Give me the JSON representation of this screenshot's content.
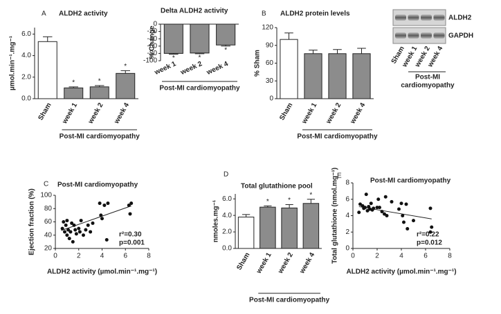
{
  "chart_data": [
    {
      "type": "bar",
      "panel": "A",
      "title": "ALDH2 activity",
      "y_label": "µmol.min⁻¹.mg⁻¹",
      "categories": [
        "Sham",
        "week 1",
        "week 2",
        "week 4"
      ],
      "values": [
        5.3,
        1.0,
        1.1,
        2.35
      ],
      "errors": [
        0.45,
        0.1,
        0.12,
        0.25
      ],
      "colors": [
        "#ffffff",
        "#8c8c8c",
        "#8c8c8c",
        "#8c8c8c"
      ],
      "significance": [
        null,
        "*",
        "*",
        "*"
      ],
      "group_label": "Post-MI cardiomyopathy",
      "ylim": [
        0,
        6.6
      ],
      "yticks": [
        {
          "value": 0,
          "label": "0.0"
        },
        {
          "value": 2,
          "label": "2.0"
        },
        {
          "value": 4,
          "label": "4.0"
        },
        {
          "value": 6,
          "label": "6.0"
        }
      ]
    },
    {
      "type": "bar",
      "title": "Delta ALDH2 activity",
      "y_label": "% Change",
      "categories": [
        "week 1",
        "week 2",
        "week 4"
      ],
      "values": [
        -80,
        -79,
        -57
      ],
      "errors": [
        2,
        2,
        3
      ],
      "colors": [
        "#8c8c8c",
        "#8c8c8c",
        "#8c8c8c"
      ],
      "significance": [
        "*",
        "*",
        "*"
      ],
      "group_label": "Post-MI cardiomyopathy",
      "ylim": [
        -100,
        0
      ],
      "yticks": [
        -100,
        -80,
        -60,
        -40,
        -20,
        0
      ]
    },
    {
      "type": "bar",
      "panel": "B",
      "title": "ALDH2 protein levels",
      "y_label": "% Sham",
      "categories": [
        "Sham",
        "week 1",
        "week 2",
        "week 4"
      ],
      "values": [
        100,
        76,
        76,
        76
      ],
      "errors": [
        11,
        6,
        7,
        9
      ],
      "colors": [
        "#ffffff",
        "#8c8c8c",
        "#8c8c8c",
        "#8c8c8c"
      ],
      "group_label": "Post-MI cardiomyopathy",
      "ylim": [
        0,
        120
      ],
      "yticks": [
        0,
        30,
        60,
        90,
        120
      ]
    },
    {
      "type": "scatter",
      "panel": "C",
      "title": "Post-MI cardiomyopathy",
      "x_label": "ALDH2 activity (µmol.min⁻¹.mg⁻¹)",
      "y_label": "Ejection fraction (%)",
      "x": [
        0.6,
        0.7,
        0.8,
        0.9,
        1.0,
        1.0,
        1.1,
        1.2,
        1.3,
        1.4,
        1.5,
        1.6,
        1.7,
        1.8,
        2.0,
        2.1,
        2.2,
        2.4,
        2.6,
        2.8,
        3.0,
        3.2,
        3.8,
        3.9,
        4.0,
        4.2,
        4.4,
        4.5,
        6.3,
        6.4,
        6.5
      ],
      "y": [
        50,
        60,
        45,
        55,
        40,
        62,
        48,
        35,
        45,
        58,
        30,
        55,
        48,
        42,
        50,
        45,
        62,
        40,
        48,
        55,
        45,
        58,
        88,
        70,
        65,
        85,
        33,
        88,
        85,
        72,
        88
      ],
      "fit": {
        "x": [
          0.5,
          6.5
        ],
        "y": [
          47,
          84
        ]
      },
      "annotations": [
        "r²=0.30",
        "p=0.001"
      ],
      "xlim": [
        0,
        8
      ],
      "xticks": [
        0,
        2,
        4,
        6,
        8
      ],
      "ylim": [
        20,
        100
      ],
      "yticks": [
        20,
        40,
        60,
        80,
        100
      ]
    },
    {
      "type": "bar",
      "panel": "D",
      "title": "Total glutathione pool",
      "y_label": "nmoles.mg⁻¹",
      "categories": [
        "Sham",
        "week 1",
        "week 2",
        "week 4"
      ],
      "values": [
        3.8,
        5.0,
        4.9,
        5.45
      ],
      "errors": [
        0.3,
        0.15,
        0.4,
        0.5
      ],
      "colors": [
        "#ffffff",
        "#8c8c8c",
        "#8c8c8c",
        "#8c8c8c"
      ],
      "significance": [
        null,
        "*",
        "*",
        "*"
      ],
      "group_label": "Post-MI cardiomyopathy",
      "ylim": [
        0,
        6.6
      ],
      "yticks": [
        {
          "value": 0,
          "label": "0.0"
        },
        {
          "value": 2,
          "label": "2.0"
        },
        {
          "value": 4,
          "label": "4.0"
        },
        {
          "value": 6,
          "label": "6.0"
        }
      ]
    },
    {
      "type": "scatter",
      "panel": "E",
      "title": "Post-MI cardiomyopathy",
      "x_label": "ALDH2 activity (µmol.min⁻¹.mg⁻¹)",
      "y_label": "Total glutathione (nmol.mg⁻¹)",
      "x": [
        0.5,
        0.6,
        0.8,
        0.9,
        1.0,
        1.1,
        1.2,
        1.3,
        1.4,
        1.5,
        1.6,
        1.7,
        2.0,
        2.1,
        2.2,
        2.4,
        2.6,
        2.7,
        2.8,
        3.2,
        3.8,
        4.0,
        4.1,
        4.2,
        4.4,
        4.5,
        5.0,
        6.4,
        6.5,
        6.4
      ],
      "y": [
        4.4,
        5.4,
        5.2,
        4.9,
        5.0,
        6.6,
        4.6,
        5.1,
        4.8,
        5.5,
        4.7,
        4.9,
        5.0,
        6.0,
        5.0,
        4.5,
        4.2,
        6.3,
        4.0,
        5.7,
        4.8,
        5.5,
        4.0,
        3.2,
        5.4,
        2.4,
        3.4,
        4.9,
        2.6,
        2.0
      ],
      "fit": {
        "x": [
          0.5,
          6.5
        ],
        "y": [
          5.1,
          3.6
        ]
      },
      "annotations": [
        "r²=0.22",
        "p=0.012"
      ],
      "xlim": [
        0,
        8
      ],
      "xticks": [
        0,
        2,
        4,
        6,
        8
      ],
      "ylim": [
        0,
        8
      ],
      "yticks": [
        0,
        2,
        4,
        6,
        8
      ]
    }
  ],
  "blot": {
    "bands": [
      "ALDH2",
      "GAPDH"
    ],
    "lanes": [
      "Sham",
      "week 1",
      "week 2",
      "week 4"
    ],
    "group_label_lines": [
      "Post-MI",
      "cardiomyopathy"
    ]
  }
}
